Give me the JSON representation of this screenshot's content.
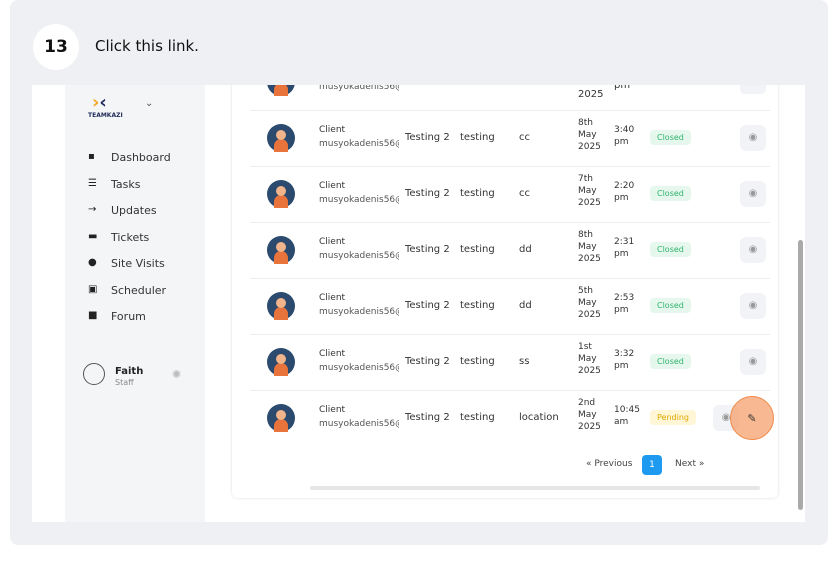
{
  "step": {
    "number": "13",
    "instruction": "Click this link."
  },
  "sidebar": {
    "logo": "TEAMKAZI",
    "menu": [
      "Dashboard",
      "Tasks",
      "Updates",
      "Tickets",
      "Site Visits",
      "Scheduler",
      "Forum"
    ],
    "user": {
      "name": "Faith",
      "role": "Staff"
    }
  },
  "table": {
    "partial_row": {
      "email": "musyokadenis56@",
      "date": "2025",
      "time": "pm"
    },
    "rows": [
      {
        "name": "Client",
        "email": "musyokadenis56@",
        "project": "Testing 2",
        "title": "testing",
        "type": "cc",
        "date": [
          "8th",
          "May",
          "2025"
        ],
        "time": [
          "3:40",
          "pm"
        ],
        "status": "Closed"
      },
      {
        "name": "Client",
        "email": "musyokadenis56@",
        "project": "Testing 2",
        "title": "testing",
        "type": "cc",
        "date": [
          "7th",
          "May",
          "2025"
        ],
        "time": [
          "2:20",
          "pm"
        ],
        "status": "Closed"
      },
      {
        "name": "Client",
        "email": "musyokadenis56@",
        "project": "Testing 2",
        "title": "testing",
        "type": "dd",
        "date": [
          "8th",
          "May",
          "2025"
        ],
        "time": [
          "2:31",
          "pm"
        ],
        "status": "Closed"
      },
      {
        "name": "Client",
        "email": "musyokadenis56@",
        "project": "Testing 2",
        "title": "testing",
        "type": "dd",
        "date": [
          "5th",
          "May",
          "2025"
        ],
        "time": [
          "2:53",
          "pm"
        ],
        "status": "Closed"
      },
      {
        "name": "Client",
        "email": "musyokadenis56@",
        "project": "Testing 2",
        "title": "testing",
        "type": "ss",
        "date": [
          "1st",
          "May",
          "2025"
        ],
        "time": [
          "3:32",
          "pm"
        ],
        "status": "Closed"
      },
      {
        "name": "Client",
        "email": "musyokadenis56@",
        "project": "Testing 2",
        "title": "testing",
        "type": "location",
        "date": [
          "2nd",
          "May",
          "2025"
        ],
        "time": [
          "10:45",
          "am"
        ],
        "status": "Pending"
      }
    ]
  },
  "pagination": {
    "previous": "« Previous",
    "current": "1",
    "next": "Next »"
  }
}
